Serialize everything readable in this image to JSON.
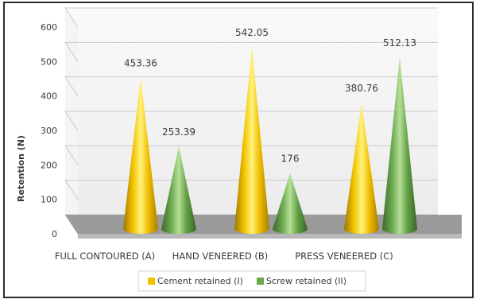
{
  "chart_data": {
    "type": "bar",
    "style": "3d-cone",
    "categories": [
      "FULL CONTOURED (A)",
      "HAND VENEERED (B)",
      "PRESS VENEERED  (C)"
    ],
    "series": [
      {
        "name": "Cement retained (I)",
        "values": [
          453.36,
          542.05,
          380.76
        ],
        "color": "#f2c200"
      },
      {
        "name": "Screw retained (II)",
        "values": [
          253.39,
          176,
          512.13
        ],
        "color": "#6aa84f"
      }
    ],
    "data_labels": [
      [
        "453.36",
        "542.05",
        "380.76"
      ],
      [
        "253.39",
        "176",
        "512.13"
      ]
    ],
    "ylabel": "Retention (N)",
    "xlabel": "",
    "ylim": [
      0,
      600
    ],
    "yticks": [
      "0",
      "100",
      "200",
      "300",
      "400",
      "500",
      "600"
    ],
    "grid": true,
    "legend_position": "bottom"
  }
}
